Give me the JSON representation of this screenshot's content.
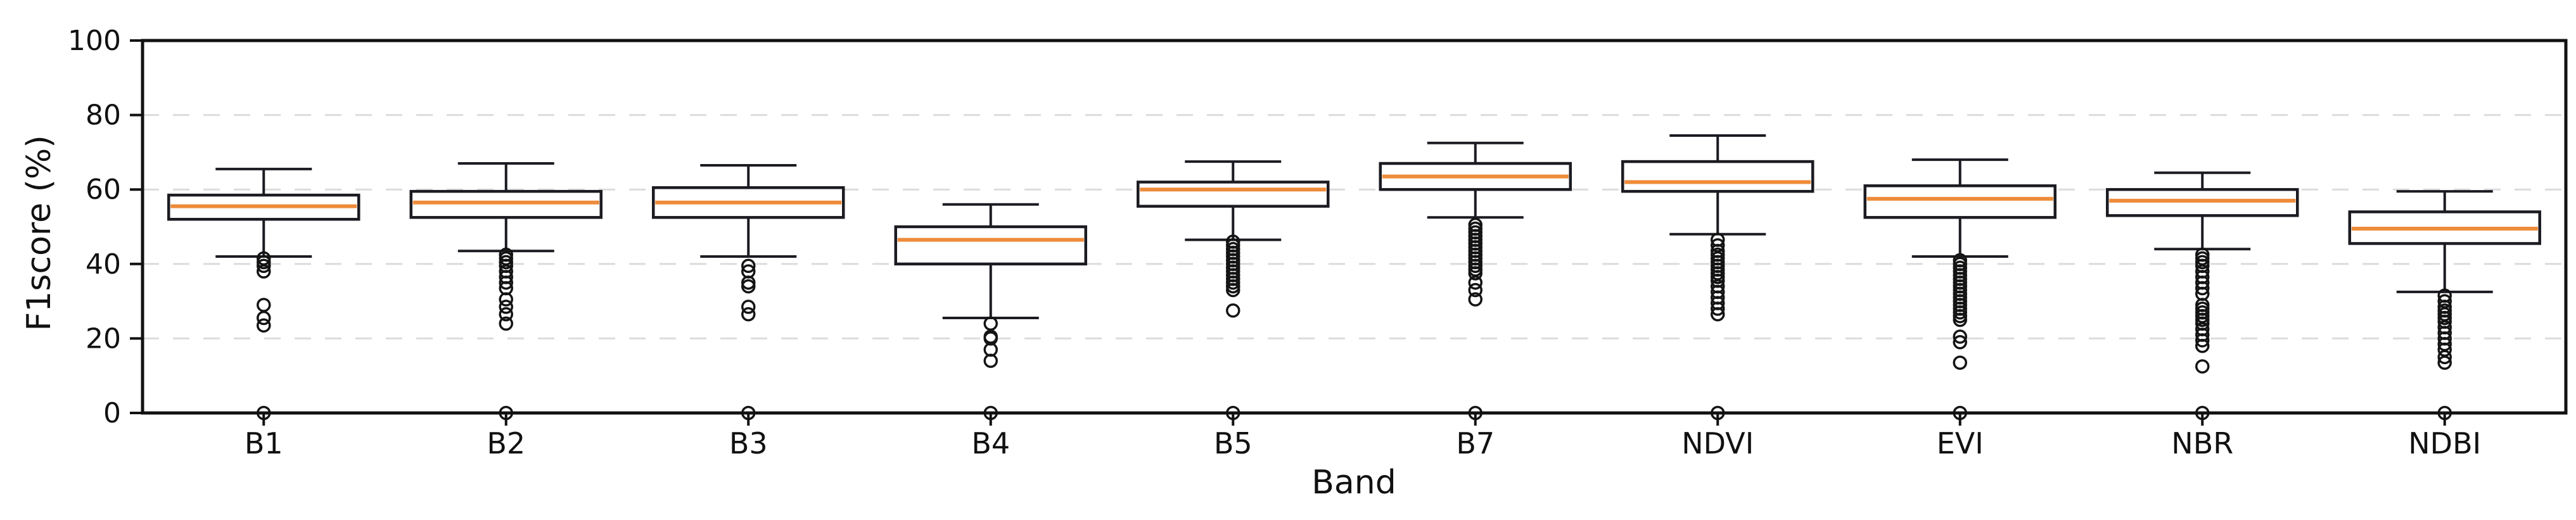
{
  "chart_data": {
    "type": "box",
    "title": "",
    "xlabel": "Band",
    "ylabel": "F1score (%)",
    "ylim": [
      0,
      100
    ],
    "y_ticks": [
      0,
      20,
      40,
      60,
      80,
      100
    ],
    "grid": {
      "show": true,
      "style": "dashed",
      "color": "#dcdcdc",
      "at": [
        20,
        40,
        60,
        80
      ]
    },
    "legend": "none",
    "categories": [
      "B1",
      "B2",
      "B3",
      "B4",
      "B5",
      "B7",
      "NDVI",
      "EVI",
      "NBR",
      "NDBI"
    ],
    "series": [
      {
        "band": "B1",
        "whisker_low": 42,
        "q1": 52,
        "median": 55.5,
        "q3": 58.5,
        "whisker_high": 65.5,
        "outliers": [
          41.5,
          40.5,
          39.5,
          38,
          29,
          25.5,
          23.5,
          0
        ]
      },
      {
        "band": "B2",
        "whisker_low": 43.5,
        "q1": 52.5,
        "median": 56.5,
        "q3": 59.5,
        "whisker_high": 67,
        "outliers": [
          42.5,
          41.5,
          40.5,
          39.5,
          38,
          36.5,
          35,
          33.5,
          30.5,
          28.5,
          26.5,
          24,
          0
        ]
      },
      {
        "band": "B3",
        "whisker_low": 42,
        "q1": 52.5,
        "median": 56.5,
        "q3": 60.5,
        "whisker_high": 66.5,
        "outliers": [
          39.5,
          38,
          35,
          34,
          28.5,
          26.5,
          0
        ]
      },
      {
        "band": "B4",
        "whisker_low": 25.5,
        "q1": 40,
        "median": 46.5,
        "q3": 50,
        "whisker_high": 56,
        "outliers": [
          24,
          20.5,
          20,
          17,
          14,
          0
        ]
      },
      {
        "band": "B5",
        "whisker_low": 46.5,
        "q1": 55.5,
        "median": 60,
        "q3": 62,
        "whisker_high": 67.5,
        "outliers": [
          46,
          45,
          44,
          43,
          42,
          41,
          40,
          39,
          38,
          37,
          36,
          35,
          34,
          33,
          27.5,
          0
        ]
      },
      {
        "band": "B7",
        "whisker_low": 52.5,
        "q1": 60,
        "median": 63.5,
        "q3": 67,
        "whisker_high": 72.5,
        "outliers": [
          50.5,
          49.5,
          48.5,
          47.5,
          46.5,
          45.5,
          44.5,
          43.5,
          42.5,
          41.5,
          40.5,
          39.5,
          38.5,
          37.5,
          35,
          33,
          30.5,
          0
        ]
      },
      {
        "band": "NDVI",
        "whisker_low": 48,
        "q1": 59.5,
        "median": 62,
        "q3": 67.5,
        "whisker_high": 74.5,
        "outliers": [
          46.5,
          45,
          43.5,
          42.5,
          41.5,
          40.5,
          39.5,
          38.5,
          37.5,
          36.5,
          35.5,
          34,
          32.5,
          31,
          29.5,
          28,
          26.5,
          0
        ]
      },
      {
        "band": "EVI",
        "whisker_low": 42,
        "q1": 52.5,
        "median": 57.5,
        "q3": 61,
        "whisker_high": 68,
        "outliers": [
          41,
          40,
          39,
          38,
          37,
          36,
          35,
          34,
          33,
          32,
          31,
          30,
          29,
          28,
          27,
          26,
          25,
          20.5,
          19,
          13.5,
          0
        ]
      },
      {
        "band": "NBR",
        "whisker_low": 44,
        "q1": 53,
        "median": 57,
        "q3": 60,
        "whisker_high": 64.5,
        "outliers": [
          42.5,
          41.5,
          40.5,
          39.5,
          38,
          36.5,
          35,
          33.5,
          32,
          29,
          28,
          27,
          26,
          25,
          24,
          22.5,
          21,
          19.5,
          18,
          12.5,
          0
        ]
      },
      {
        "band": "NDBI",
        "whisker_low": 32.5,
        "q1": 45.5,
        "median": 49.5,
        "q3": 54,
        "whisker_high": 59.5,
        "outliers": [
          31.5,
          30,
          28.5,
          27.5,
          26.5,
          25.5,
          24.5,
          23,
          21.5,
          20,
          18.5,
          17,
          15,
          13.5,
          0
        ]
      }
    ],
    "style": {
      "box_fill": "#ffffff",
      "box_edge_color": "#1b1b22",
      "whisker_color": "#1b1b22",
      "median_color": "#ee8b3a",
      "outlier_edge_color": "#141414",
      "tick_label_color": "#111111",
      "background": "#ffffff"
    }
  }
}
